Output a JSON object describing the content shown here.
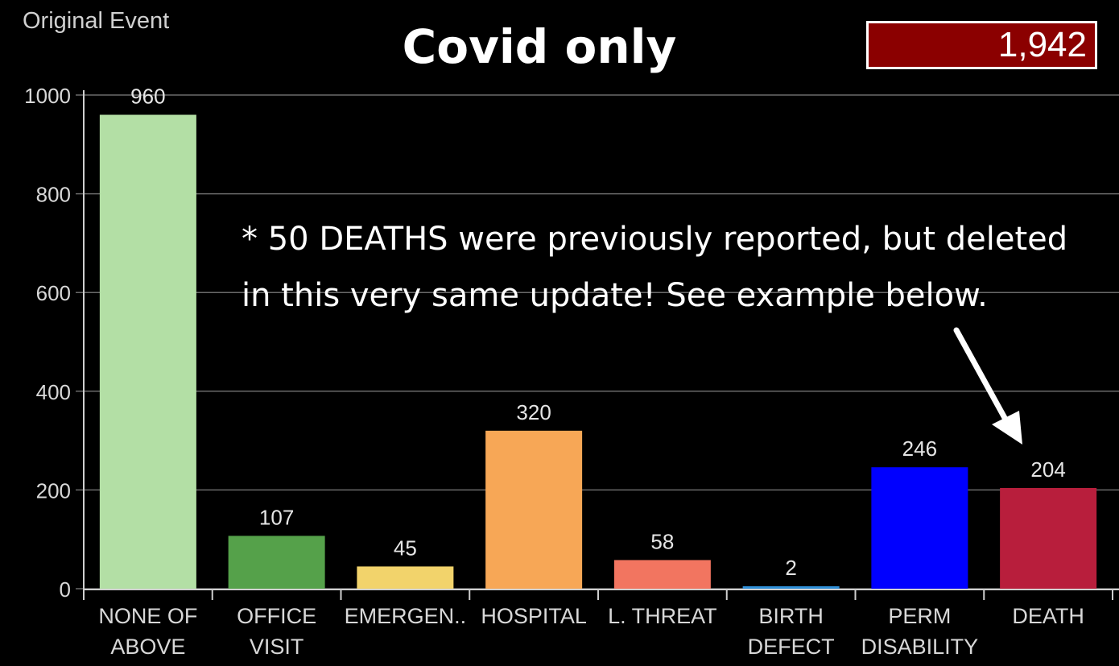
{
  "chart_data": {
    "type": "bar",
    "title": "Covid only",
    "ylabel": "Original Event",
    "xlabel": "",
    "categories": [
      [
        "NONE OF",
        "ABOVE"
      ],
      [
        "OFFICE",
        "VISIT"
      ],
      [
        "EMERGEN.."
      ],
      [
        "HOSPITAL"
      ],
      [
        "L. THREAT"
      ],
      [
        "BIRTH",
        "DEFECT"
      ],
      [
        "PERM",
        "DISABILITY"
      ],
      [
        "DEATH"
      ]
    ],
    "values": [
      960,
      107,
      45,
      320,
      58,
      2,
      246,
      204
    ],
    "value_labels": [
      "960",
      "107",
      "45",
      "320",
      "58",
      "2",
      "246",
      "204"
    ],
    "colors": [
      "#b3dfa5",
      "#55a14a",
      "#f2d36b",
      "#f7a756",
      "#f27560",
      "#2f8fd8",
      "#0000ff",
      "#b81e3c"
    ],
    "ylim": [
      0,
      1000
    ],
    "yticks": [
      0,
      200,
      400,
      600,
      800,
      1000
    ],
    "grid": true,
    "total_badge": "1,942",
    "total_badge_color": "#8b0000",
    "annotation": [
      "* 50 DEATHS were previously reported, but deleted",
      "in this very same update!  See example below."
    ]
  }
}
